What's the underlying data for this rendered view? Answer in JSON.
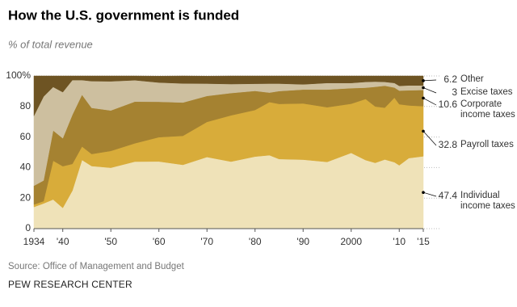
{
  "chart_data": {
    "type": "area",
    "title": "How the U.S. government is funded",
    "subtitle": "% of total revenue",
    "source": "Source: Office of Management and Budget",
    "publisher": "PEW RESEARCH CENTER",
    "stacked": true,
    "x": [
      1934,
      1936,
      1938,
      1940,
      1942,
      1944,
      1946,
      1950,
      1955,
      1960,
      1965,
      1970,
      1975,
      1980,
      1983,
      1985,
      1990,
      1995,
      2000,
      2003,
      2005,
      2007,
      2009,
      2010,
      2012,
      2015
    ],
    "xlim": [
      1934,
      2015
    ],
    "xticks": [
      1934,
      {
        "value": 1940,
        "label": "'40"
      },
      {
        "value": 1950,
        "label": "'50"
      },
      {
        "value": 1960,
        "label": "'60"
      },
      {
        "value": 1970,
        "label": "'70"
      },
      {
        "value": 1980,
        "label": "'80"
      },
      {
        "value": 1990,
        "label": "'90"
      },
      2000,
      {
        "value": 2010,
        "label": "'10"
      },
      {
        "value": 2015,
        "label": "'15"
      }
    ],
    "ylim": [
      0,
      100
    ],
    "yticks": [
      0,
      20,
      40,
      60,
      80,
      {
        "value": 100,
        "label": "100%"
      }
    ],
    "grid": true,
    "series": [
      {
        "name": "Individual income taxes",
        "color": "#efe2b8",
        "values": [
          14.2,
          16.5,
          19.1,
          13.6,
          24.9,
          45.0,
          41.0,
          39.9,
          43.9,
          44.0,
          41.8,
          46.9,
          43.9,
          47.2,
          48.1,
          45.6,
          45.2,
          43.7,
          49.6,
          44.9,
          43.1,
          45.3,
          43.5,
          41.5,
          46.2,
          47.4
        ]
      },
      {
        "name": "Payroll taxes",
        "color": "#d8ac3a",
        "values": [
          1.6,
          1.5,
          25.4,
          27.3,
          17.5,
          8.8,
          7.9,
          11.0,
          12.0,
          15.9,
          19.0,
          23.0,
          30.3,
          30.5,
          34.8,
          36.1,
          36.8,
          35.8,
          32.2,
          40.0,
          36.9,
          33.9,
          42.3,
          40.0,
          34.5,
          32.8
        ]
      },
      {
        "name": "Corporate income taxes",
        "color": "#a58231",
        "values": [
          12.3,
          13.5,
          19.8,
          18.3,
          32.2,
          33.9,
          30.2,
          26.5,
          27.3,
          23.2,
          21.8,
          17.0,
          14.6,
          12.5,
          6.2,
          8.4,
          9.1,
          11.6,
          10.2,
          7.4,
          12.9,
          14.4,
          6.6,
          8.9,
          9.9,
          10.6
        ]
      },
      {
        "name": "Excise taxes",
        "color": "#cdbf9f",
        "values": [
          45.8,
          55.0,
          28.5,
          30.2,
          22.7,
          9.6,
          17.5,
          19.1,
          14.0,
          12.6,
          12.5,
          8.1,
          5.9,
          4.7,
          5.9,
          4.9,
          3.4,
          4.3,
          3.4,
          3.8,
          3.4,
          2.5,
          3.0,
          3.1,
          3.2,
          3.0
        ]
      },
      {
        "name": "Other",
        "color": "#6e5423",
        "values": [
          26.1,
          13.5,
          7.2,
          10.6,
          2.7,
          2.7,
          3.4,
          3.5,
          2.8,
          4.2,
          4.9,
          4.9,
          5.3,
          5.1,
          5.0,
          5.0,
          5.5,
          4.6,
          4.6,
          3.9,
          3.7,
          3.9,
          4.6,
          6.5,
          6.2,
          6.2
        ]
      }
    ]
  }
}
